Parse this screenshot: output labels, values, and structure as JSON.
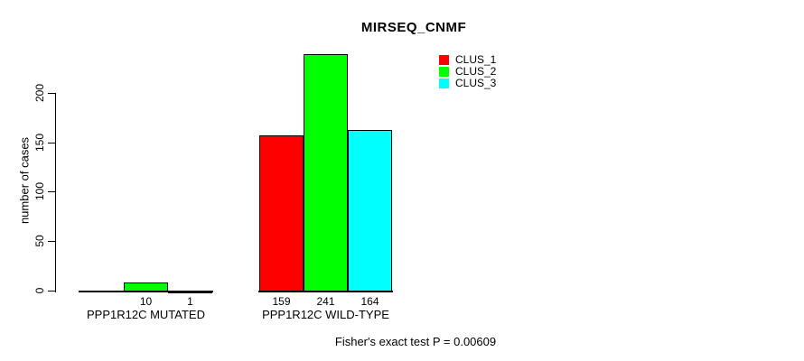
{
  "title": "MIRSEQ_CNMF",
  "footer": {
    "text": "Fisher's exact test P = 0.00609"
  },
  "legend": {
    "position": "top-right",
    "items": [
      {
        "label": "CLUS_1",
        "color": "#FF0000"
      },
      {
        "label": "CLUS_2",
        "color": "#00FF00"
      },
      {
        "label": "CLUS_3",
        "color": "#00FFFF"
      }
    ]
  },
  "chart_data": {
    "type": "bar",
    "title": "MIRSEQ_CNMF",
    "xlabel": "",
    "ylabel": "number of cases",
    "ylim": [
      0,
      250
    ],
    "yticks": [
      0,
      50,
      100,
      150,
      200
    ],
    "grid": false,
    "legend_position": "top-right",
    "series": [
      "CLUS_1",
      "CLUS_2",
      "CLUS_3"
    ],
    "colors": [
      "#FF0000",
      "#00FF00",
      "#00FFFF"
    ],
    "categories": [
      "PPP1R12C MUTATED",
      "PPP1R12C WILD-TYPE"
    ],
    "groups": [
      {
        "label": "PPP1R12C MUTATED",
        "values": [
          0,
          10,
          1
        ],
        "value_labels": [
          "",
          "10",
          "1"
        ]
      },
      {
        "label": "PPP1R12C WILD-TYPE",
        "values": [
          159,
          241,
          164
        ],
        "value_labels": [
          "159",
          "241",
          "164"
        ]
      }
    ],
    "annotation": "Fisher's exact test P = 0.00609"
  }
}
